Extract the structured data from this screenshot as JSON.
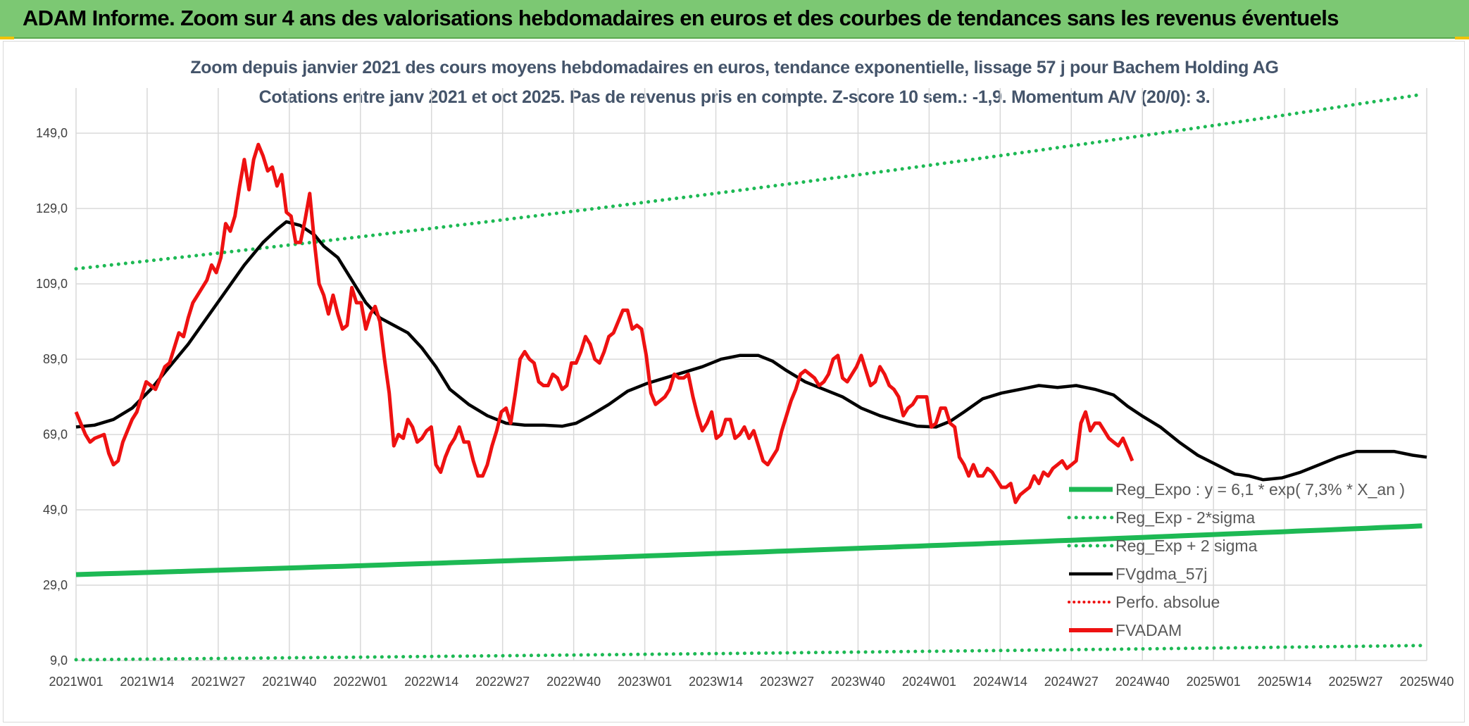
{
  "banner": {
    "title": "ADAM Informe. Zoom sur 4 ans des valorisations hebdomadaires en euros et des courbes de tendances sans les revenus éventuels"
  },
  "colors": {
    "banner_bg": "#7cc873",
    "green": "#1db954",
    "red": "#ee1111",
    "black": "#000000",
    "grid": "#d9d9d9",
    "title": "#44546a"
  },
  "chart_data": {
    "type": "line",
    "title_line1": "Zoom depuis janvier 2021 des cours moyens hebdomadaires en euros, tendance exponentielle, lissage 57 j pour Bachem Holding AG",
    "title_line2": "Cotations entre janv 2021 et oct 2025. Pas de revenus pris en compte. Z-score 10 sem.: -1,9. Momentum A/V (20/0): 3.",
    "y_ticks": [
      "9,0",
      "29,0",
      "49,0",
      "69,0",
      "89,0",
      "109,0",
      "129,0",
      "149,0"
    ],
    "ylim": [
      9,
      161
    ],
    "x_ticks": [
      "2021W01",
      "2021W14",
      "2021W27",
      "2021W40",
      "2022W01",
      "2022W14",
      "2022W27",
      "2022W40",
      "2023W01",
      "2023W14",
      "2023W27",
      "2023W40",
      "2024W01",
      "2024W14",
      "2024W27",
      "2024W40",
      "2025W01",
      "2025W14",
      "2025W27",
      "2025W40"
    ],
    "n_weeks": 248,
    "legend": [
      {
        "key": "reg",
        "label": "Reg_Expo : y = 6,1 * exp( 7,3% *  X_an )"
      },
      {
        "key": "low",
        "label": "Reg_Exp - 2*sigma"
      },
      {
        "key": "high",
        "label": "Reg_Exp + 2 sigma"
      },
      {
        "key": "ma",
        "label": "FVgdma_57j"
      },
      {
        "key": "perf",
        "label": "Perfo. absolue"
      },
      {
        "key": "adam",
        "label": "FVADAM"
      }
    ],
    "series": [
      {
        "name": "Reg_Expo",
        "style": "solid",
        "start": 31.8,
        "end": 44.8
      },
      {
        "name": "Reg_Exp - 2*sigma",
        "style": "dotted",
        "start": 9.2,
        "end": 13.0
      },
      {
        "name": "Reg_Exp + 2 sigma",
        "style": "dotted",
        "start": 113.0,
        "end": 159.5
      },
      {
        "name": "FVgdma_57j",
        "style": "solid",
        "points": [
          [
            0,
            71
          ],
          [
            4,
            71.5
          ],
          [
            8,
            73
          ],
          [
            12,
            76
          ],
          [
            16,
            81
          ],
          [
            20,
            87
          ],
          [
            24,
            93
          ],
          [
            28,
            100
          ],
          [
            32,
            107
          ],
          [
            36,
            114
          ],
          [
            40,
            120
          ],
          [
            43,
            123.5
          ],
          [
            45,
            125.5
          ],
          [
            48,
            124.5
          ],
          [
            51,
            122
          ],
          [
            53,
            119
          ],
          [
            56,
            116
          ],
          [
            59,
            110
          ],
          [
            62,
            104
          ],
          [
            65,
            100
          ],
          [
            68,
            98
          ],
          [
            71,
            96
          ],
          [
            74,
            92
          ],
          [
            77,
            87
          ],
          [
            80,
            81
          ],
          [
            84,
            77
          ],
          [
            88,
            74
          ],
          [
            92,
            72
          ],
          [
            96,
            71.5
          ],
          [
            100,
            71.5
          ],
          [
            104,
            71.2
          ],
          [
            107,
            72
          ],
          [
            110,
            74
          ],
          [
            114,
            77
          ],
          [
            118,
            80.5
          ],
          [
            122,
            82.5
          ],
          [
            126,
            84
          ],
          [
            130,
            85.5
          ],
          [
            134,
            87
          ],
          [
            138,
            89
          ],
          [
            142,
            90
          ],
          [
            146,
            90
          ],
          [
            149,
            88.5
          ],
          [
            152,
            86
          ],
          [
            156,
            83
          ],
          [
            160,
            81
          ],
          [
            164,
            79
          ],
          [
            168,
            76
          ],
          [
            172,
            74
          ],
          [
            176,
            72.5
          ],
          [
            180,
            71.2
          ],
          [
            184,
            71
          ],
          [
            187,
            72.5
          ],
          [
            190,
            75
          ],
          [
            194,
            78.5
          ],
          [
            198,
            80
          ],
          [
            202,
            81
          ],
          [
            206,
            82
          ],
          [
            210,
            81.5
          ],
          [
            214,
            82
          ],
          [
            218,
            81
          ],
          [
            222,
            79.5
          ],
          [
            225,
            76.5
          ],
          [
            228,
            74
          ],
          [
            232,
            71
          ],
          [
            236,
            67
          ],
          [
            240,
            63.5
          ],
          [
            244,
            61
          ],
          [
            248,
            58.5
          ],
          [
            251,
            58
          ],
          [
            254,
            57
          ],
          [
            258,
            57.5
          ],
          [
            262,
            59
          ],
          [
            266,
            61
          ],
          [
            270,
            63
          ],
          [
            274,
            64.5
          ],
          [
            278,
            64.5
          ],
          [
            282,
            64.5
          ],
          [
            286,
            63.5
          ],
          [
            289,
            63
          ]
        ]
      },
      {
        "name": "FVADAM",
        "style": "solid",
        "points": [
          [
            0,
            75
          ],
          [
            1,
            72
          ],
          [
            2,
            69
          ],
          [
            3,
            67
          ],
          [
            4,
            68
          ],
          [
            5,
            68.5
          ],
          [
            6,
            69
          ],
          [
            7,
            64
          ],
          [
            8,
            61
          ],
          [
            9,
            62
          ],
          [
            10,
            67
          ],
          [
            11,
            70
          ],
          [
            12,
            73
          ],
          [
            13,
            75
          ],
          [
            14,
            79
          ],
          [
            15,
            83
          ],
          [
            16,
            82
          ],
          [
            17,
            81
          ],
          [
            18,
            84
          ],
          [
            19,
            87
          ],
          [
            20,
            88
          ],
          [
            21,
            92
          ],
          [
            22,
            96
          ],
          [
            23,
            95
          ],
          [
            24,
            100
          ],
          [
            25,
            104
          ],
          [
            26,
            106
          ],
          [
            27,
            108
          ],
          [
            28,
            110
          ],
          [
            29,
            114
          ],
          [
            30,
            112
          ],
          [
            31,
            116
          ],
          [
            32,
            125
          ],
          [
            33,
            123
          ],
          [
            34,
            127
          ],
          [
            35,
            135
          ],
          [
            36,
            142
          ],
          [
            37,
            134
          ],
          [
            38,
            142
          ],
          [
            39,
            146
          ],
          [
            40,
            143
          ],
          [
            41,
            139
          ],
          [
            42,
            140
          ],
          [
            43,
            135
          ],
          [
            44,
            138
          ],
          [
            45,
            128
          ],
          [
            46,
            127
          ],
          [
            47,
            120
          ],
          [
            48,
            120
          ],
          [
            49,
            126
          ],
          [
            50,
            133
          ],
          [
            51,
            120
          ],
          [
            52,
            109
          ],
          [
            53,
            106
          ],
          [
            54,
            101
          ],
          [
            55,
            106
          ],
          [
            56,
            101
          ],
          [
            57,
            97
          ],
          [
            58,
            98
          ],
          [
            59,
            108
          ],
          [
            60,
            104
          ],
          [
            61,
            104
          ],
          [
            62,
            97
          ],
          [
            63,
            101
          ],
          [
            64,
            103
          ],
          [
            65,
            99
          ],
          [
            66,
            89
          ],
          [
            67,
            80
          ],
          [
            68,
            66
          ],
          [
            69,
            69
          ],
          [
            70,
            68
          ],
          [
            71,
            73
          ],
          [
            72,
            71
          ],
          [
            73,
            67
          ],
          [
            74,
            68
          ],
          [
            75,
            70
          ],
          [
            76,
            71
          ],
          [
            77,
            61
          ],
          [
            78,
            59
          ],
          [
            79,
            63
          ],
          [
            80,
            66
          ],
          [
            81,
            68
          ],
          [
            82,
            71
          ],
          [
            83,
            67
          ],
          [
            84,
            67
          ],
          [
            85,
            62
          ],
          [
            86,
            58
          ],
          [
            87,
            58
          ],
          [
            88,
            61
          ],
          [
            89,
            66
          ],
          [
            90,
            70
          ],
          [
            91,
            75
          ],
          [
            92,
            76
          ],
          [
            93,
            72
          ],
          [
            94,
            80
          ],
          [
            95,
            89
          ],
          [
            96,
            91
          ],
          [
            97,
            89
          ],
          [
            98,
            88
          ],
          [
            99,
            83
          ],
          [
            100,
            82
          ],
          [
            101,
            82
          ],
          [
            102,
            85
          ],
          [
            103,
            84
          ],
          [
            104,
            81
          ],
          [
            105,
            82
          ],
          [
            106,
            88
          ],
          [
            107,
            88
          ],
          [
            108,
            91
          ],
          [
            109,
            95
          ],
          [
            110,
            93
          ],
          [
            111,
            89
          ],
          [
            112,
            88
          ],
          [
            113,
            91
          ],
          [
            114,
            95
          ],
          [
            115,
            96
          ],
          [
            116,
            99
          ],
          [
            117,
            102
          ],
          [
            118,
            102
          ],
          [
            119,
            97
          ],
          [
            120,
            98
          ],
          [
            121,
            97
          ],
          [
            122,
            90
          ],
          [
            123,
            80
          ],
          [
            124,
            77
          ],
          [
            125,
            78
          ],
          [
            126,
            79
          ],
          [
            127,
            81
          ],
          [
            128,
            85
          ],
          [
            129,
            84
          ],
          [
            130,
            84
          ],
          [
            131,
            85
          ],
          [
            132,
            79
          ],
          [
            133,
            74
          ],
          [
            134,
            70
          ],
          [
            135,
            72
          ],
          [
            136,
            75
          ],
          [
            137,
            68
          ],
          [
            138,
            69
          ],
          [
            139,
            73
          ],
          [
            140,
            73
          ],
          [
            141,
            68
          ],
          [
            142,
            69
          ],
          [
            143,
            71
          ],
          [
            144,
            68
          ],
          [
            145,
            70
          ],
          [
            146,
            66
          ],
          [
            147,
            62
          ],
          [
            148,
            61
          ],
          [
            149,
            63
          ],
          [
            150,
            65
          ],
          [
            151,
            70
          ],
          [
            152,
            74
          ],
          [
            153,
            78
          ],
          [
            154,
            81
          ],
          [
            155,
            85
          ],
          [
            156,
            86
          ],
          [
            157,
            85
          ],
          [
            158,
            84
          ],
          [
            159,
            82
          ],
          [
            160,
            83
          ],
          [
            161,
            85
          ],
          [
            162,
            89
          ],
          [
            163,
            90
          ],
          [
            164,
            84
          ],
          [
            165,
            83
          ],
          [
            166,
            85
          ],
          [
            167,
            87
          ],
          [
            168,
            90
          ],
          [
            169,
            86
          ],
          [
            170,
            82
          ],
          [
            171,
            83
          ],
          [
            172,
            87
          ],
          [
            173,
            85
          ],
          [
            174,
            82
          ],
          [
            175,
            81
          ],
          [
            176,
            79
          ],
          [
            177,
            74
          ],
          [
            178,
            76
          ],
          [
            179,
            77
          ],
          [
            180,
            79
          ],
          [
            181,
            79
          ],
          [
            182,
            79
          ],
          [
            183,
            71
          ],
          [
            184,
            72
          ],
          [
            185,
            76
          ],
          [
            186,
            76
          ],
          [
            187,
            72
          ],
          [
            188,
            71
          ],
          [
            189,
            63
          ],
          [
            190,
            61
          ],
          [
            191,
            58
          ],
          [
            192,
            61
          ],
          [
            193,
            58
          ],
          [
            194,
            58
          ],
          [
            195,
            60
          ],
          [
            196,
            59
          ],
          [
            197,
            57
          ],
          [
            198,
            55
          ],
          [
            199,
            55
          ],
          [
            200,
            56
          ],
          [
            201,
            51
          ],
          [
            202,
            53
          ],
          [
            203,
            54
          ],
          [
            204,
            55
          ],
          [
            205,
            58
          ],
          [
            206,
            56
          ],
          [
            207,
            59
          ],
          [
            208,
            58
          ],
          [
            209,
            60
          ],
          [
            210,
            61
          ],
          [
            211,
            62
          ],
          [
            212,
            60
          ],
          [
            213,
            61
          ],
          [
            214,
            62
          ],
          [
            215,
            72
          ],
          [
            216,
            75
          ],
          [
            217,
            70
          ],
          [
            218,
            72
          ],
          [
            219,
            72
          ],
          [
            220,
            70
          ],
          [
            221,
            68
          ],
          [
            222,
            67
          ],
          [
            223,
            66
          ],
          [
            224,
            68
          ],
          [
            225,
            65
          ],
          [
            226,
            62
          ]
        ]
      }
    ]
  }
}
